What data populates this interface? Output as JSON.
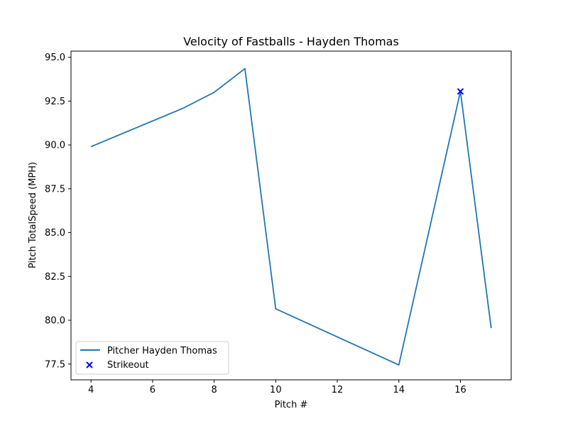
{
  "chart_data": {
    "type": "line",
    "title": "Velocity of Fastballs - Hayden Thomas",
    "xlabel": "Pitch #",
    "ylabel": "Pitch TotalSpeed (MPH)",
    "xlim": [
      3.35,
      17.65
    ],
    "ylim": [
      76.6,
      95.35
    ],
    "xticks": [
      4,
      6,
      8,
      10,
      12,
      14,
      16
    ],
    "yticks": [
      77.5,
      80.0,
      82.5,
      85.0,
      87.5,
      90.0,
      92.5,
      95.0
    ],
    "grid": false,
    "legend_position": "lower-left",
    "series": [
      {
        "name": "Pitcher Hayden Thomas",
        "kind": "line",
        "color": "#1f77b4",
        "x": [
          4,
          7,
          8,
          9,
          10,
          14,
          16,
          17
        ],
        "y": [
          89.9,
          92.1,
          93.0,
          94.35,
          80.65,
          77.45,
          93.05,
          79.55
        ]
      },
      {
        "name": "Strikeout",
        "kind": "scatter",
        "marker": "x",
        "color": "#0000ff",
        "x": [
          16
        ],
        "y": [
          93.05
        ]
      }
    ]
  }
}
